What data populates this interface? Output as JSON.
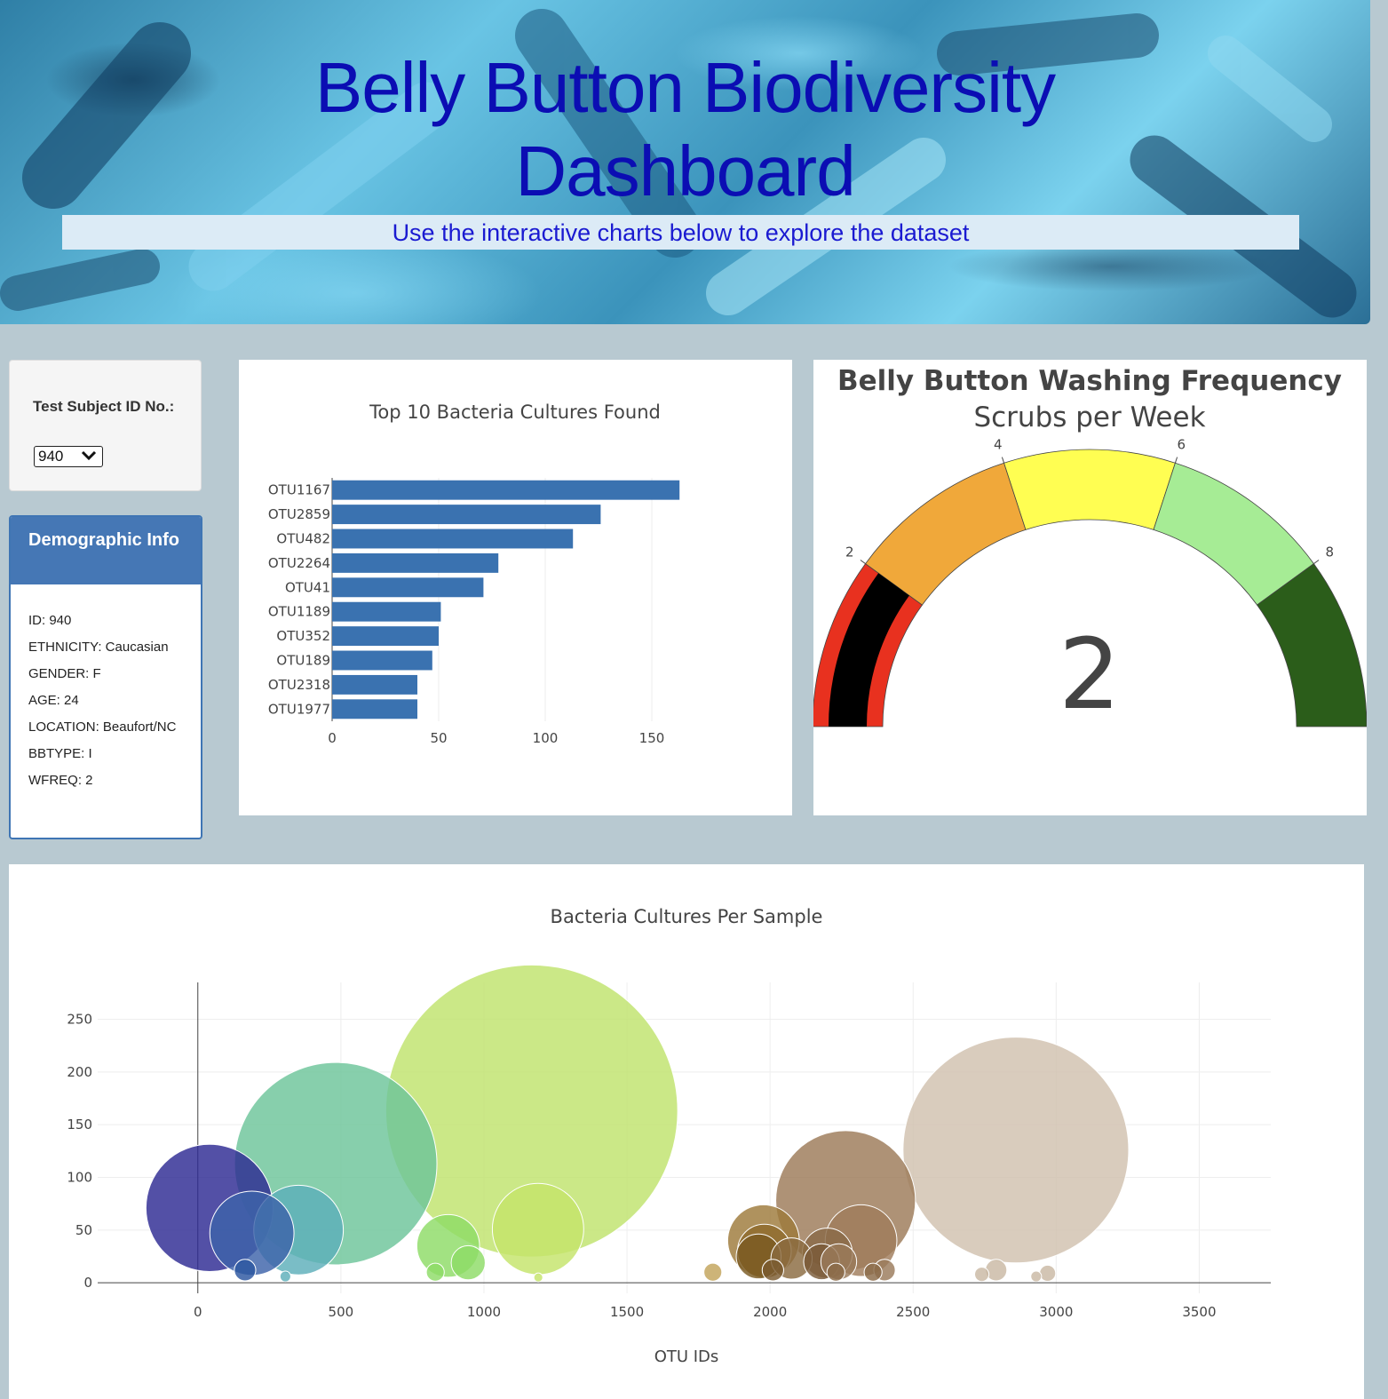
{
  "header": {
    "title_line1": "Belly Button Biodiversity",
    "title_line2": "Dashboard",
    "subtitle": "Use the interactive charts below to explore the dataset"
  },
  "selector": {
    "label": "Test Subject ID No.:",
    "selected": "940"
  },
  "demographics": {
    "title": "Demographic Info",
    "rows": [
      "ID: 940",
      "ETHNICITY: Caucasian",
      "GENDER: F",
      "AGE: 24",
      "LOCATION: Beaufort/NC",
      "BBTYPE: I",
      "WFREQ: 2"
    ]
  },
  "colors": {
    "accent": "#4577b5",
    "bar": "#3a72b0",
    "title": "#0b0db3"
  },
  "chart_data": [
    {
      "type": "bar",
      "orientation": "horizontal",
      "title": "Top 10 Bacteria Cultures Found",
      "categories": [
        "OTU1167",
        "OTU2859",
        "OTU482",
        "OTU2264",
        "OTU41",
        "OTU1189",
        "OTU352",
        "OTU189",
        "OTU2318",
        "OTU1977"
      ],
      "values": [
        163,
        126,
        113,
        78,
        71,
        51,
        50,
        47,
        40,
        40
      ],
      "xlim": [
        0,
        185
      ],
      "xticks": [
        0,
        50,
        100,
        150
      ],
      "grid": true
    },
    {
      "type": "gauge",
      "title": "Belly Button Washing Frequency",
      "subtitle": "Scrubs per Week",
      "value": 2,
      "range": [
        0,
        10
      ],
      "ticks": [
        2,
        4,
        6,
        8
      ],
      "bands": [
        {
          "from": 0,
          "to": 2,
          "color": "#e8311f"
        },
        {
          "from": 2,
          "to": 4,
          "color": "#f0a83a"
        },
        {
          "from": 4,
          "to": 6,
          "color": "#fffe52"
        },
        {
          "from": 6,
          "to": 8,
          "color": "#a6ec95"
        },
        {
          "from": 8,
          "to": 10,
          "color": "#2b5d1a"
        }
      ],
      "bar_color": "#000000"
    },
    {
      "type": "scatter",
      "title": "Bacteria Cultures Per Sample",
      "xlabel": "OTU IDs",
      "xlim": [
        -350,
        3750
      ],
      "ylim": [
        -10,
        285
      ],
      "xticks": [
        0,
        500,
        1000,
        1500,
        2000,
        2500,
        3000,
        3500
      ],
      "yticks": [
        0,
        50,
        100,
        150,
        200,
        250
      ],
      "grid": true,
      "points": [
        {
          "x": 41,
          "y": 71,
          "color": "#2d2a92"
        },
        {
          "x": 189,
          "y": 47,
          "color": "#3d63aa"
        },
        {
          "x": 165,
          "y": 12,
          "color": "#2b56a0"
        },
        {
          "x": 352,
          "y": 50,
          "color": "#5daeba"
        },
        {
          "x": 306,
          "y": 6,
          "color": "#5daeba"
        },
        {
          "x": 482,
          "y": 113,
          "color": "#6cc49a"
        },
        {
          "x": 875,
          "y": 35,
          "color": "#8edc67"
        },
        {
          "x": 945,
          "y": 19,
          "color": "#8edc67"
        },
        {
          "x": 830,
          "y": 10,
          "color": "#8edc67"
        },
        {
          "x": 1167,
          "y": 163,
          "color": "#bfe36d"
        },
        {
          "x": 1189,
          "y": 51,
          "color": "#c4e46a"
        },
        {
          "x": 1190,
          "y": 5,
          "color": "#c4e46a"
        },
        {
          "x": 1800,
          "y": 10,
          "color": "#c2a35a"
        },
        {
          "x": 1977,
          "y": 40,
          "color": "#9e7a3a"
        },
        {
          "x": 1980,
          "y": 30,
          "color": "#8e6a2c"
        },
        {
          "x": 1960,
          "y": 25,
          "color": "#7a5a22"
        },
        {
          "x": 2075,
          "y": 23,
          "color": "#8a6a40"
        },
        {
          "x": 2010,
          "y": 12,
          "color": "#7a5a30"
        },
        {
          "x": 2264,
          "y": 78,
          "color": "#9c7a58"
        },
        {
          "x": 2318,
          "y": 40,
          "color": "#a07c5c"
        },
        {
          "x": 2200,
          "y": 28,
          "color": "#8a6a48"
        },
        {
          "x": 2180,
          "y": 20,
          "color": "#7a5a38"
        },
        {
          "x": 2240,
          "y": 20,
          "color": "#9a7a5a"
        },
        {
          "x": 2230,
          "y": 10,
          "color": "#8a6a48"
        },
        {
          "x": 2400,
          "y": 12,
          "color": "#9a7a5a"
        },
        {
          "x": 2360,
          "y": 10,
          "color": "#8a6a48"
        },
        {
          "x": 2859,
          "y": 126,
          "color": "#d1c1ae"
        },
        {
          "x": 2790,
          "y": 12,
          "color": "#c9b8a4"
        },
        {
          "x": 2740,
          "y": 8,
          "color": "#c9b8a4"
        },
        {
          "x": 2970,
          "y": 9,
          "color": "#c9b8a4"
        },
        {
          "x": 2930,
          "y": 6,
          "color": "#c9b8a4"
        }
      ]
    }
  ]
}
